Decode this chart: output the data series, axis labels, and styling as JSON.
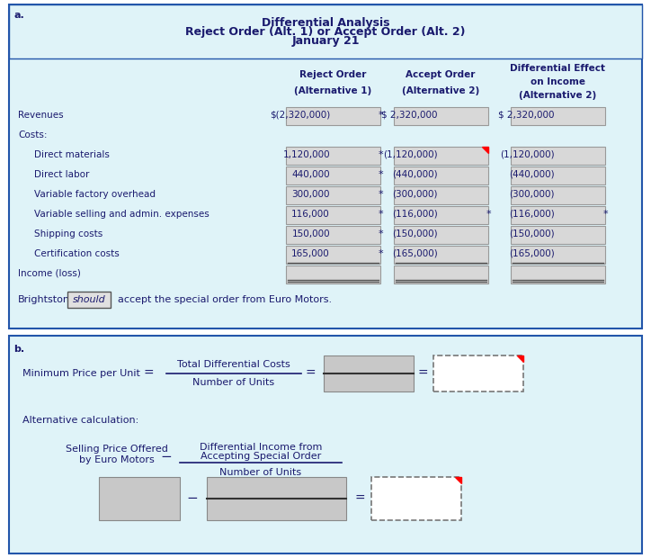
{
  "bg_color": "#dff3f8",
  "border_color": "#2255aa",
  "header_bg": "#dff3f8",
  "cell_bg": "#d4d4d4",
  "cell_bg_light": "#e8e8e8",
  "text_color": "#1a1a6e",
  "title_line1": "Differential Analysis",
  "title_line2": "Reject Order (Alt. 1) or Accept Order (Alt. 2)",
  "title_line3": "January 21",
  "col_headers": [
    "Reject Order\n(Alternative 1)",
    "Accept Order\n(Alternative 2)",
    "Differential Effect\non Income\n(Alternative 2)"
  ],
  "row_labels": [
    "Revenues",
    "Costs:",
    "    Direct materials",
    "    Direct labor",
    "    Variable factory overhead",
    "    Variable selling and admin. expenses",
    "    Shipping costs",
    "    Certification costs",
    "Income (loss)"
  ],
  "col1_vals": [
    "$(2,320,000)",
    "",
    "1,120,000",
    "440,000",
    "300,000",
    "116,000",
    "150,000",
    "165,000",
    ""
  ],
  "col2_vals": [
    "$ 2,320,000",
    "",
    "(1,120,000)",
    "(440,000)",
    "(300,000)",
    "(116,000)",
    "(150,000)",
    "(165,000)",
    ""
  ],
  "col3_vals": [
    "$ 2,320,000",
    "",
    "(1,120,000)",
    "(440,000)",
    "(300,000)",
    "(116,000)",
    "(150,000)",
    "(165,000)",
    ""
  ],
  "asterisk1": [
    0,
    2,
    3,
    4,
    5,
    6,
    7
  ],
  "asterisk2": [
    5
  ],
  "asterisk3": [
    5
  ],
  "red_corner_rows2": [
    2
  ],
  "red_corner_rows3": [],
  "conclusion_text": "Brightstone",
  "conclusion_should": "should",
  "conclusion_rest": "  accept the special order from Euro Motors.",
  "section_b_title": "b.",
  "min_price_label": "Minimum Price per Unit",
  "fraction_num": "Total Differential Costs",
  "fraction_den": "Number of Units",
  "alt_calc_label": "Alternative calculation:",
  "selling_price_label": "Selling Price Offered\nby Euro Motors",
  "fraction2_num": "Differential Income from\nAccepting Special Order",
  "fraction2_den": "Number of Units"
}
